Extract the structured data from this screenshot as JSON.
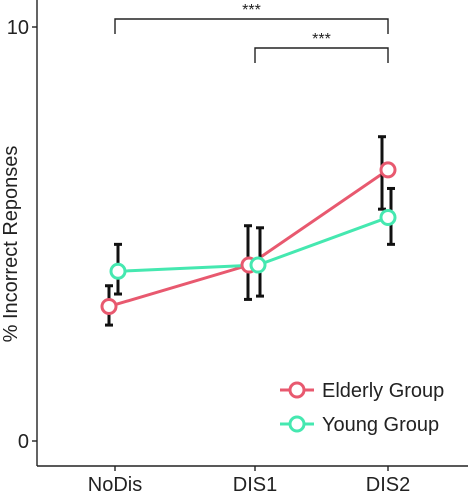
{
  "chart_data": {
    "type": "line",
    "categories": [
      "NoDis",
      "DIS1",
      "DIS2"
    ],
    "ylabel": "% Incorrect Reponses",
    "xlabel": "",
    "ylim": [
      0,
      10
    ],
    "yticks": [
      0,
      10
    ],
    "grid": false,
    "legend_position": "bottom-right",
    "series": [
      {
        "name": "Elderly Group",
        "color": "#e8596f",
        "values": [
          3.25,
          4.25,
          6.55
        ],
        "err_low": [
          2.8,
          3.42,
          5.6
        ],
        "err_high": [
          3.75,
          5.2,
          7.35
        ]
      },
      {
        "name": "Young Group",
        "color": "#45e8b0",
        "values": [
          4.1,
          4.25,
          5.4
        ],
        "err_low": [
          3.55,
          3.5,
          4.75
        ],
        "err_high": [
          4.75,
          5.15,
          6.1
        ]
      }
    ],
    "annotations": [
      {
        "text": "***",
        "from": "NoDis",
        "to": "DIS2",
        "level": 1
      },
      {
        "text": "***",
        "from": "DIS1",
        "to": "DIS2",
        "level": 2
      }
    ]
  }
}
